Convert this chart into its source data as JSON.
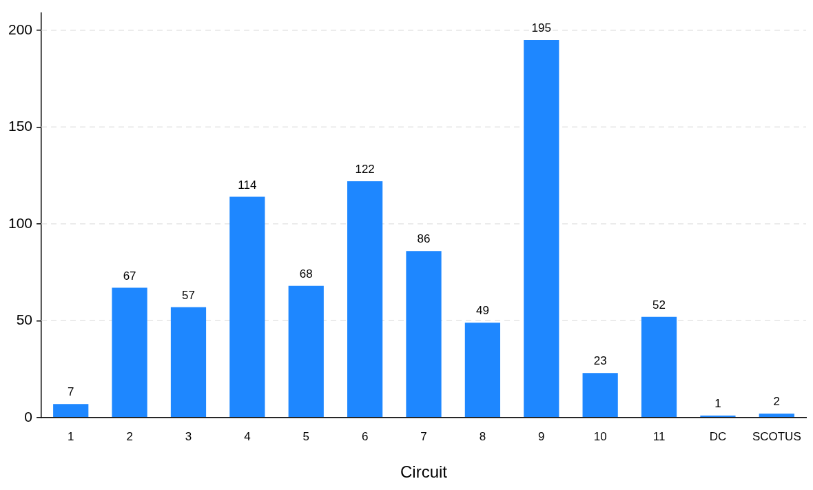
{
  "chart_data": {
    "type": "bar",
    "xlabel": "Circuit",
    "categories": [
      "1",
      "2",
      "3",
      "4",
      "5",
      "6",
      "7",
      "8",
      "9",
      "10",
      "11",
      "DC",
      "SCOTUS"
    ],
    "values": [
      7,
      67,
      57,
      114,
      68,
      122,
      86,
      49,
      195,
      23,
      52,
      1,
      2
    ],
    "color": "#1e87ff",
    "ylim": [
      0,
      209
    ],
    "yticks": [
      0,
      50,
      100,
      150,
      200
    ],
    "grid": "y",
    "data_labels": true,
    "legend": false
  }
}
